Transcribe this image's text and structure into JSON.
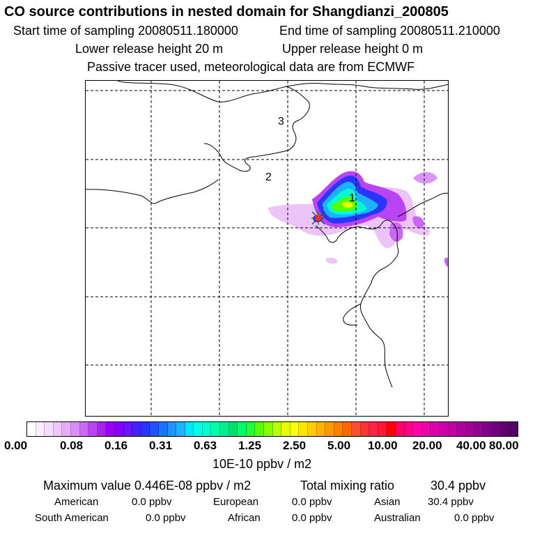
{
  "header": {
    "title": "CO  source contributions in nested domain for Shangdianzi_200805",
    "start_time": "Start time of sampling 20080511.180000",
    "end_time": "End time of sampling 20080511.210000",
    "lower_height": "Lower release height   20 m",
    "upper_height": "Upper release height    0 m",
    "note": "Passive tracer used, meteorological data are from ECMWF"
  },
  "map": {
    "region_labels": [
      "1",
      "2",
      "3"
    ],
    "site_marker": "receptor-marker"
  },
  "colorbar": {
    "unit": "10E-10 ppbv / m2",
    "tick_labels": [
      "0.00",
      "0.08",
      "0.16",
      "0.31",
      "0.63",
      "1.25",
      "2.50",
      "5.00",
      "10.00",
      "20.00",
      "40.00",
      "80.00"
    ],
    "colors": [
      "#ffffff",
      "#fbeefe",
      "#f6dcfd",
      "#efc6fb",
      "#e6acfa",
      "#dc8ef8",
      "#cc66f5",
      "#bb44f2",
      "#aa22ee",
      "#9900ff",
      "#8400ff",
      "#6a14ff",
      "#4422ff",
      "#2a36ff",
      "#1d52ff",
      "#1a74ff",
      "#1d94ff",
      "#1cb2ff",
      "#00e6ff",
      "#00ffe6",
      "#00ffcc",
      "#00ffaa",
      "#00f08c",
      "#00e070",
      "#00ff66",
      "#22ff33",
      "#55ff00",
      "#88ff00",
      "#bbff00",
      "#e6ff00",
      "#ffff00",
      "#ffe600",
      "#ffcc00",
      "#ffb300",
      "#ff9900",
      "#ff8000",
      "#ff6600",
      "#ff4d33",
      "#ff3333",
      "#ff2244",
      "#ff1a33",
      "#ff0000",
      "#ff0066",
      "#ff0088",
      "#ff00aa",
      "#ee00aa",
      "#dd00aa",
      "#cc00aa",
      "#c000a5",
      "#b000a0",
      "#a00098",
      "#900090",
      "#800088",
      "#700080",
      "#600070",
      "#500060"
    ]
  },
  "stats": {
    "max_label": "Maximum value  0.446E-08 ppbv / m2",
    "total_label": "Total mixing ratio",
    "total_value": "30.4 ppbv",
    "american_label": "American",
    "american_value": "0.0 ppbv",
    "european_label": "European",
    "european_value": "0.0 ppbv",
    "asian_label": "Asian",
    "asian_value": "30.4 ppbv",
    "south_american_label": "South American",
    "south_american_value": "0.0 ppbv",
    "african_label": "African",
    "african_value": "0.0 ppbv",
    "australian_label": "Australian",
    "australian_value": "0.0 ppbv"
  }
}
